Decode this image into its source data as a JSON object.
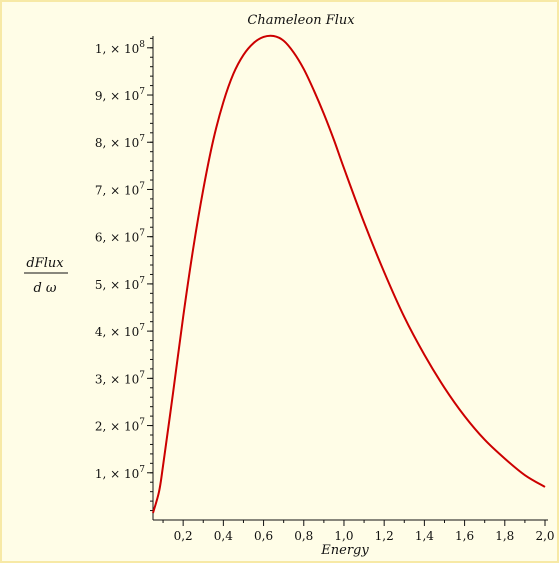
{
  "chart_data": {
    "type": "line",
    "title": "Chameleon Flux",
    "xlabel": "Energy",
    "ylabel_numerator": "dFlux",
    "ylabel_denominator": "d ω",
    "xlim": [
      0.05,
      2.0
    ],
    "ylim": [
      0,
      102500000
    ],
    "x_ticks": [
      {
        "value": 0.2,
        "label": "0,2"
      },
      {
        "value": 0.4,
        "label": "0,4"
      },
      {
        "value": 0.6,
        "label": "0,6"
      },
      {
        "value": 0.8,
        "label": "0,8"
      },
      {
        "value": 1.0,
        "label": "1,0"
      },
      {
        "value": 1.2,
        "label": "1,2"
      },
      {
        "value": 1.4,
        "label": "1,4"
      },
      {
        "value": 1.6,
        "label": "1,6"
      },
      {
        "value": 1.8,
        "label": "1,8"
      },
      {
        "value": 2.0,
        "label": "2,0"
      }
    ],
    "y_ticks": [
      {
        "value": 10000000,
        "coef": "1,",
        "exp": "7"
      },
      {
        "value": 20000000,
        "coef": "2,",
        "exp": "7"
      },
      {
        "value": 30000000,
        "coef": "3,",
        "exp": "7"
      },
      {
        "value": 40000000,
        "coef": "4,",
        "exp": "7"
      },
      {
        "value": 50000000,
        "coef": "5,",
        "exp": "7"
      },
      {
        "value": 60000000,
        "coef": "6,",
        "exp": "7"
      },
      {
        "value": 70000000,
        "coef": "7,",
        "exp": "7"
      },
      {
        "value": 80000000,
        "coef": "8,",
        "exp": "7"
      },
      {
        "value": 90000000,
        "coef": "9,",
        "exp": "7"
      },
      {
        "value": 100000000,
        "coef": "1,",
        "exp": "8"
      }
    ],
    "series": [
      {
        "color": "#cc0000",
        "x": [
          0.05,
          0.08,
          0.1,
          0.15,
          0.2,
          0.25,
          0.3,
          0.35,
          0.4,
          0.45,
          0.5,
          0.55,
          0.6,
          0.65,
          0.7,
          0.75,
          0.8,
          0.85,
          0.9,
          0.95,
          1.0,
          1.1,
          1.2,
          1.3,
          1.4,
          1.5,
          1.6,
          1.7,
          1.8,
          1.9,
          2.0
        ],
        "y": [
          1500000,
          6000000,
          11500000,
          27000000,
          43000000,
          57500000,
          70000000,
          80500000,
          88500000,
          94500000,
          98500000,
          101000000,
          102300000,
          102500000,
          101500000,
          99000000,
          95500000,
          91000000,
          86000000,
          80500000,
          74500000,
          63000000,
          52500000,
          43000000,
          35000000,
          28000000,
          22000000,
          17000000,
          13000000,
          9500000,
          7000000
        ]
      }
    ]
  }
}
